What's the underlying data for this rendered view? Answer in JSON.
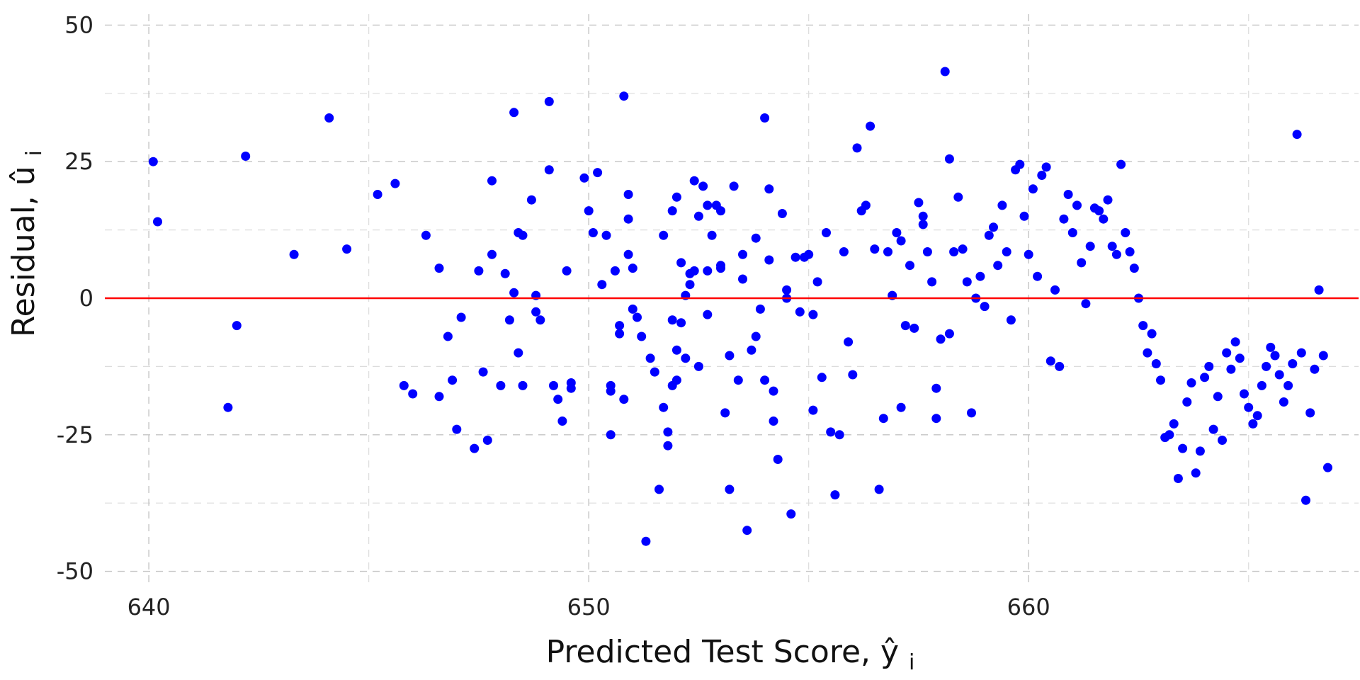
{
  "chart_data": {
    "type": "scatter",
    "title": "",
    "xlabel": "Predicted Test Score,",
    "xlabel_math": "ŷ",
    "xlabel_sub": "i",
    "ylabel": "Residual,",
    "ylabel_math": "û",
    "ylabel_sub": "i",
    "xlim": [
      639,
      667.5
    ],
    "ylim": [
      -52,
      52
    ],
    "x_major_ticks": [
      640,
      650,
      660
    ],
    "x_minor_ticks": [
      645,
      655,
      665
    ],
    "y_major_ticks": [
      -50,
      -25,
      0,
      25,
      50
    ],
    "y_minor_ticks": [
      -37.5,
      -12.5,
      12.5,
      37.5
    ],
    "x_tick_labels": [
      "640",
      "650",
      "660"
    ],
    "y_tick_labels": [
      "-50",
      "-25",
      "0",
      "25",
      "50"
    ],
    "grid": true,
    "legend": "none",
    "point_color": "#0000ff",
    "reference_line": {
      "y": 0,
      "color": "#ff0000"
    },
    "points": [
      [
        640.1,
        25
      ],
      [
        640.2,
        14
      ],
      [
        641.8,
        -20
      ],
      [
        642.0,
        -5
      ],
      [
        642.2,
        26
      ],
      [
        643.3,
        8
      ],
      [
        644.1,
        33
      ],
      [
        644.5,
        9
      ],
      [
        645.2,
        19
      ],
      [
        645.6,
        21
      ],
      [
        645.8,
        -16
      ],
      [
        646.0,
        -17.5
      ],
      [
        646.3,
        11.5
      ],
      [
        646.6,
        5.5
      ],
      [
        646.6,
        -18
      ],
      [
        646.8,
        -7
      ],
      [
        646.9,
        -15
      ],
      [
        647.0,
        -24
      ],
      [
        647.1,
        -3.5
      ],
      [
        647.4,
        -27.5
      ],
      [
        647.5,
        5
      ],
      [
        647.6,
        -13.5
      ],
      [
        647.7,
        -26
      ],
      [
        647.8,
        21.5
      ],
      [
        647.8,
        8
      ],
      [
        648.0,
        -16
      ],
      [
        648.1,
        4.5
      ],
      [
        648.2,
        -4
      ],
      [
        648.3,
        34
      ],
      [
        648.3,
        1
      ],
      [
        648.4,
        12
      ],
      [
        648.4,
        -10
      ],
      [
        648.5,
        11.5
      ],
      [
        648.5,
        -16
      ],
      [
        648.7,
        18
      ],
      [
        648.8,
        0.5
      ],
      [
        648.8,
        -2.5
      ],
      [
        648.9,
        -4
      ],
      [
        649.1,
        36
      ],
      [
        649.1,
        23.5
      ],
      [
        649.2,
        -16
      ],
      [
        649.3,
        -18.5
      ],
      [
        649.4,
        -22.5
      ],
      [
        649.5,
        5
      ],
      [
        649.6,
        -15.5
      ],
      [
        649.6,
        -16.5
      ],
      [
        649.9,
        22
      ],
      [
        650.0,
        16
      ],
      [
        650.1,
        12
      ],
      [
        650.2,
        23
      ],
      [
        650.3,
        2.5
      ],
      [
        650.4,
        11.5
      ],
      [
        650.5,
        -17
      ],
      [
        650.5,
        -16
      ],
      [
        650.5,
        -25
      ],
      [
        650.6,
        5
      ],
      [
        650.7,
        -5
      ],
      [
        650.7,
        -6.5
      ],
      [
        650.8,
        -18.5
      ],
      [
        650.8,
        37
      ],
      [
        650.9,
        19
      ],
      [
        650.9,
        14.5
      ],
      [
        650.9,
        8
      ],
      [
        651.0,
        5.5
      ],
      [
        651.0,
        -2
      ],
      [
        651.1,
        -3.5
      ],
      [
        651.2,
        -7
      ],
      [
        651.3,
        -44.5
      ],
      [
        651.4,
        -11
      ],
      [
        651.5,
        -13.5
      ],
      [
        651.6,
        -35
      ],
      [
        651.7,
        11.5
      ],
      [
        651.7,
        -20
      ],
      [
        651.8,
        -24.5
      ],
      [
        651.8,
        -27
      ],
      [
        651.9,
        16
      ],
      [
        651.9,
        -4
      ],
      [
        651.9,
        -16
      ],
      [
        652.0,
        -9.5
      ],
      [
        652.0,
        -15
      ],
      [
        652.0,
        18.5
      ],
      [
        652.1,
        6.5
      ],
      [
        652.1,
        -4.5
      ],
      [
        652.2,
        0.5
      ],
      [
        652.2,
        -11
      ],
      [
        652.3,
        2.5
      ],
      [
        652.3,
        4.5
      ],
      [
        652.4,
        21.5
      ],
      [
        652.4,
        5
      ],
      [
        652.5,
        15
      ],
      [
        652.5,
        -12.5
      ],
      [
        652.6,
        20.5
      ],
      [
        652.7,
        17
      ],
      [
        652.7,
        5
      ],
      [
        652.7,
        -3
      ],
      [
        652.8,
        11.5
      ],
      [
        652.9,
        17
      ],
      [
        653.0,
        16
      ],
      [
        653.0,
        6
      ],
      [
        653.0,
        5.5
      ],
      [
        653.1,
        -21
      ],
      [
        653.2,
        -10.5
      ],
      [
        653.2,
        -35
      ],
      [
        653.3,
        20.5
      ],
      [
        653.4,
        -15
      ],
      [
        653.5,
        8
      ],
      [
        653.5,
        3.5
      ],
      [
        653.6,
        -42.5
      ],
      [
        653.7,
        -9.5
      ],
      [
        653.8,
        -7
      ],
      [
        653.8,
        11
      ],
      [
        653.9,
        -2
      ],
      [
        654.0,
        33
      ],
      [
        654.0,
        -15
      ],
      [
        654.1,
        20
      ],
      [
        654.1,
        7
      ],
      [
        654.2,
        -17
      ],
      [
        654.2,
        -22.5
      ],
      [
        654.3,
        -29.5
      ],
      [
        654.4,
        15.5
      ],
      [
        654.5,
        0
      ],
      [
        654.5,
        1.5
      ],
      [
        654.6,
        -39.5
      ],
      [
        654.7,
        7.5
      ],
      [
        654.8,
        -2.5
      ],
      [
        654.9,
        7.5
      ],
      [
        655.0,
        8
      ],
      [
        655.1,
        -20.5
      ],
      [
        655.1,
        -3
      ],
      [
        655.2,
        3
      ],
      [
        655.3,
        -14.5
      ],
      [
        655.4,
        12
      ],
      [
        655.5,
        -24.5
      ],
      [
        655.6,
        -36
      ],
      [
        655.7,
        -25
      ],
      [
        655.8,
        8.5
      ],
      [
        655.9,
        -8
      ],
      [
        656.0,
        -14
      ],
      [
        656.1,
        27.5
      ],
      [
        656.2,
        16
      ],
      [
        656.3,
        17
      ],
      [
        656.4,
        31.5
      ],
      [
        656.5,
        9
      ],
      [
        656.6,
        -35
      ],
      [
        656.7,
        -22
      ],
      [
        656.8,
        8.5
      ],
      [
        656.9,
        0.5
      ],
      [
        657.0,
        12
      ],
      [
        657.1,
        10.5
      ],
      [
        657.1,
        -20
      ],
      [
        657.2,
        -5
      ],
      [
        657.3,
        6
      ],
      [
        657.4,
        -5.5
      ],
      [
        657.5,
        17.5
      ],
      [
        657.6,
        15
      ],
      [
        657.6,
        13.5
      ],
      [
        657.7,
        8.5
      ],
      [
        657.8,
        3
      ],
      [
        657.9,
        -16.5
      ],
      [
        657.9,
        -22
      ],
      [
        658.0,
        -7.5
      ],
      [
        658.1,
        41.5
      ],
      [
        658.2,
        25.5
      ],
      [
        658.2,
        -6.5
      ],
      [
        658.3,
        8.5
      ],
      [
        658.4,
        18.5
      ],
      [
        658.5,
        9
      ],
      [
        658.6,
        3
      ],
      [
        658.7,
        -21
      ],
      [
        658.8,
        0
      ],
      [
        658.9,
        4
      ],
      [
        659.0,
        -1.5
      ],
      [
        659.1,
        11.5
      ],
      [
        659.2,
        13
      ],
      [
        659.3,
        6
      ],
      [
        659.4,
        17
      ],
      [
        659.5,
        8.5
      ],
      [
        659.6,
        -4
      ],
      [
        659.7,
        23.5
      ],
      [
        659.8,
        24.5
      ],
      [
        659.9,
        15
      ],
      [
        660.0,
        8
      ],
      [
        660.1,
        20
      ],
      [
        660.2,
        4
      ],
      [
        660.3,
        22.5
      ],
      [
        660.4,
        24
      ],
      [
        660.5,
        -11.5
      ],
      [
        660.6,
        1.5
      ],
      [
        660.7,
        -12.5
      ],
      [
        660.8,
        14.5
      ],
      [
        660.9,
        19
      ],
      [
        661.0,
        12
      ],
      [
        661.1,
        17
      ],
      [
        661.2,
        6.5
      ],
      [
        661.3,
        -1
      ],
      [
        661.4,
        9.5
      ],
      [
        661.5,
        16.5
      ],
      [
        661.6,
        16
      ],
      [
        661.7,
        14.5
      ],
      [
        661.8,
        18
      ],
      [
        661.9,
        9.5
      ],
      [
        662.0,
        8
      ],
      [
        662.1,
        24.5
      ],
      [
        662.2,
        12
      ],
      [
        662.3,
        8.5
      ],
      [
        662.4,
        5.5
      ],
      [
        662.5,
        0
      ],
      [
        662.6,
        -5
      ],
      [
        662.7,
        -10
      ],
      [
        662.8,
        -6.5
      ],
      [
        662.9,
        -12
      ],
      [
        663.0,
        -15
      ],
      [
        663.1,
        -25.5
      ],
      [
        663.2,
        -25
      ],
      [
        663.3,
        -23
      ],
      [
        663.4,
        -33
      ],
      [
        663.5,
        -27.5
      ],
      [
        663.6,
        -19
      ],
      [
        663.7,
        -15.5
      ],
      [
        663.8,
        -32
      ],
      [
        663.9,
        -28
      ],
      [
        664.0,
        -14.5
      ],
      [
        664.1,
        -12.5
      ],
      [
        664.2,
        -24
      ],
      [
        664.3,
        -18
      ],
      [
        664.4,
        -26
      ],
      [
        664.5,
        -10
      ],
      [
        664.6,
        -13
      ],
      [
        664.7,
        -8
      ],
      [
        664.8,
        -11
      ],
      [
        664.9,
        -17.5
      ],
      [
        665.0,
        -20
      ],
      [
        665.1,
        -23
      ],
      [
        665.2,
        -21.5
      ],
      [
        665.3,
        -16
      ],
      [
        665.4,
        -12.5
      ],
      [
        665.5,
        -9
      ],
      [
        665.6,
        -10.5
      ],
      [
        665.7,
        -14
      ],
      [
        665.8,
        -19
      ],
      [
        665.9,
        -16
      ],
      [
        666.0,
        -12
      ],
      [
        666.1,
        30
      ],
      [
        666.2,
        -10
      ],
      [
        666.3,
        -37
      ],
      [
        666.4,
        -21
      ],
      [
        666.5,
        -13
      ],
      [
        666.6,
        1.5
      ],
      [
        666.7,
        -10.5
      ],
      [
        666.8,
        -31
      ]
    ]
  }
}
